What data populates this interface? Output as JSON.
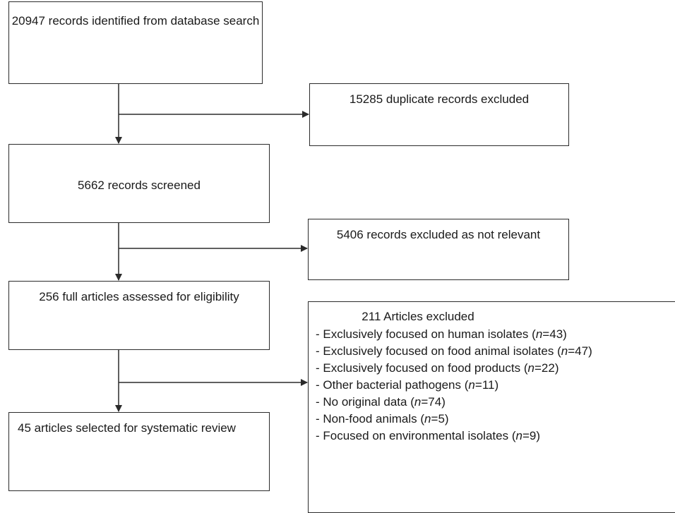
{
  "flow": {
    "identified": "20947 records identified from database search",
    "duplicates": "15285 duplicate records excluded",
    "screened": "5662 records screened",
    "not_relevant": "5406 records excluded as not relevant",
    "assessed": "256 full articles assessed for eligibility",
    "selected": "45 articles selected for systematic review",
    "excluded": {
      "title": "211 Articles excluded",
      "reasons": [
        {
          "text": "Exclusively focused on human isolates",
          "n": "43"
        },
        {
          "text": "Exclusively focused on food animal isolates",
          "n": "47"
        },
        {
          "text": "Exclusively focused on food products",
          "n": "22"
        },
        {
          "text": "Other bacterial pathogens",
          "n": "11"
        },
        {
          "text": "No original data",
          "n": "74"
        },
        {
          "text": "Non-food animals",
          "n": "5"
        },
        {
          "text": "Focused on environmental isolates",
          "n": "9"
        }
      ]
    }
  }
}
